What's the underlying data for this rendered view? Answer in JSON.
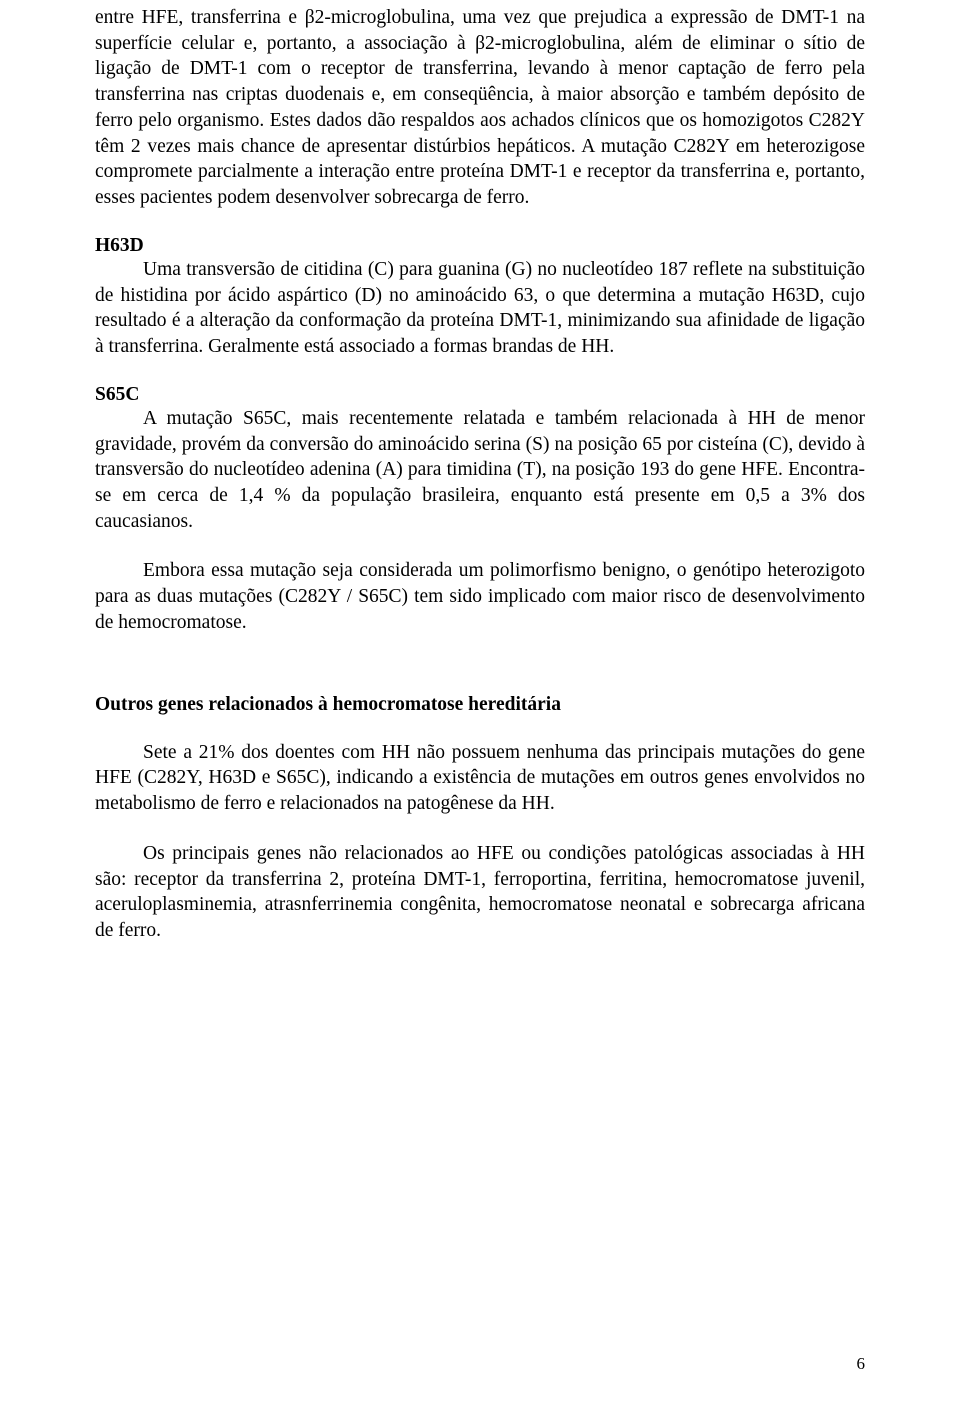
{
  "page": {
    "number": "6",
    "font": {
      "family": "Times New Roman",
      "body_size_pt": 15,
      "color": "#000000"
    },
    "background_color": "#ffffff"
  },
  "paragraphs": {
    "intro_continuation": "entre HFE, transferrina e β2-microglobulina, uma vez que prejudica a expressão de DMT-1 na superfície celular e, portanto, a associação à β2-microglobulina, além de eliminar o sítio de ligação de DMT-1  com o receptor de transferrina, levando à menor captação de ferro pela transferrina nas criptas duodenais e, em conseqüência, à maior absorção e também depósito de ferro pelo organismo. Estes dados dão respaldos aos achados clínicos que os homozigotos C282Y têm 2 vezes mais chance de apresentar distúrbios hepáticos. A mutação C282Y em heterozigose compromete parcialmente a interação entre proteína DMT-1  e receptor da transferrina e, portanto, esses pacientes podem desenvolver sobrecarga de ferro.",
    "h63d_heading": "H63D",
    "h63d_body": "Uma transversão de citidina (C) para guanina (G) no nucleotídeo 187 reflete na substituição de histidina por ácido aspártico (D) no aminoácido 63, o que determina a mutação H63D, cujo resultado é a alteração da conformação da proteína DMT-1, minimizando sua afinidade de ligação à transferrina. Geralmente está associado a formas brandas de HH.",
    "s65c_heading": "S65C",
    "s65c_body1": "A mutação S65C, mais recentemente relatada e também relacionada à HH de menor gravidade, provém da conversão do aminoácido serina (S) na posição 65 por cisteína (C), devido à transversão do nucleotídeo adenina (A) para timidina (T), na posição 193 do gene HFE. Encontra-se em cerca de 1,4 % da população brasileira, enquanto está presente em 0,5 a 3% dos caucasianos.",
    "s65c_body2": "Embora essa mutação seja considerada um polimorfismo benigno, o genótipo heterozigoto para as duas mutações (C282Y / S65C) tem sido implicado com maior risco de desenvolvimento de hemocromatose.",
    "outros_heading": "Outros genes relacionados à hemocromatose hereditária",
    "outros_body1": "Sete a 21% dos doentes com HH não possuem nenhuma das principais mutações do gene HFE (C282Y, H63D e S65C), indicando a existência de mutações em outros genes envolvidos no metabolismo de ferro e relacionados na patogênese da HH.",
    "outros_body2": "Os principais genes não relacionados ao HFE ou condições patológicas associadas à HH são: receptor da transferrina 2, proteína DMT-1, ferroportina, ferritina, hemocromatose juvenil, aceruloplasminemia, atrasnferrinemia congênita, hemocromatose neonatal e sobrecarga africana de ferro."
  }
}
